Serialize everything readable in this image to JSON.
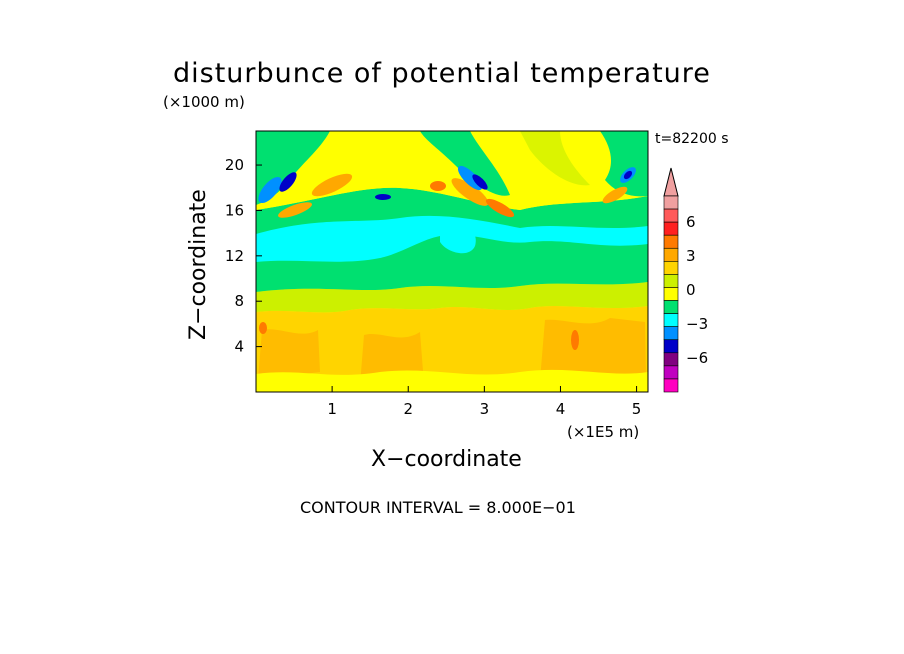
{
  "chart_data": {
    "type": "heatmap",
    "title": "disturbunce of potential temperature",
    "xlabel": "X−coordinate",
    "ylabel": "Z−coordinate",
    "x_unit": "(×1E5 m)",
    "y_unit": "(×1000 m)",
    "time_label": "t=82200 s",
    "contour_note": "CONTOUR INTERVAL = 8.000E−01",
    "xlim": [
      0,
      5.15
    ],
    "ylim": [
      0,
      23
    ],
    "x_ticks": [
      1,
      2,
      3,
      4,
      5
    ],
    "y_ticks": [
      4,
      8,
      12,
      16,
      20
    ],
    "contour_interval": 0.8,
    "colorbar": {
      "tick_labels": [
        "6",
        "3",
        "0",
        "−3",
        "−6"
      ],
      "colors_top_to_bottom": [
        "#f0a0a0",
        "#ff5a5a",
        "#ff2020",
        "#ff7a00",
        "#ffa800",
        "#ffd400",
        "#ccf000",
        "#ffff00",
        "#00e070",
        "#00ffff",
        "#0090ff",
        "#0000c8",
        "#800080",
        "#c000c0",
        "#ff00c0"
      ]
    },
    "regions": [
      {
        "z": [
          0,
          8
        ],
        "value": 1.2,
        "color": "#ffd400",
        "desc": "warm lower layer"
      },
      {
        "z": [
          8,
          10
        ],
        "value": 0.4,
        "color": "#ccf000"
      },
      {
        "z": [
          10,
          14
        ],
        "value": -0.6,
        "color": "#00e070"
      },
      {
        "z": [
          14,
          16
        ],
        "value": -1.2,
        "color": "#00ffff"
      },
      {
        "z": [
          16,
          22
        ],
        "value": 0.2,
        "color": "#ffff00"
      }
    ]
  }
}
